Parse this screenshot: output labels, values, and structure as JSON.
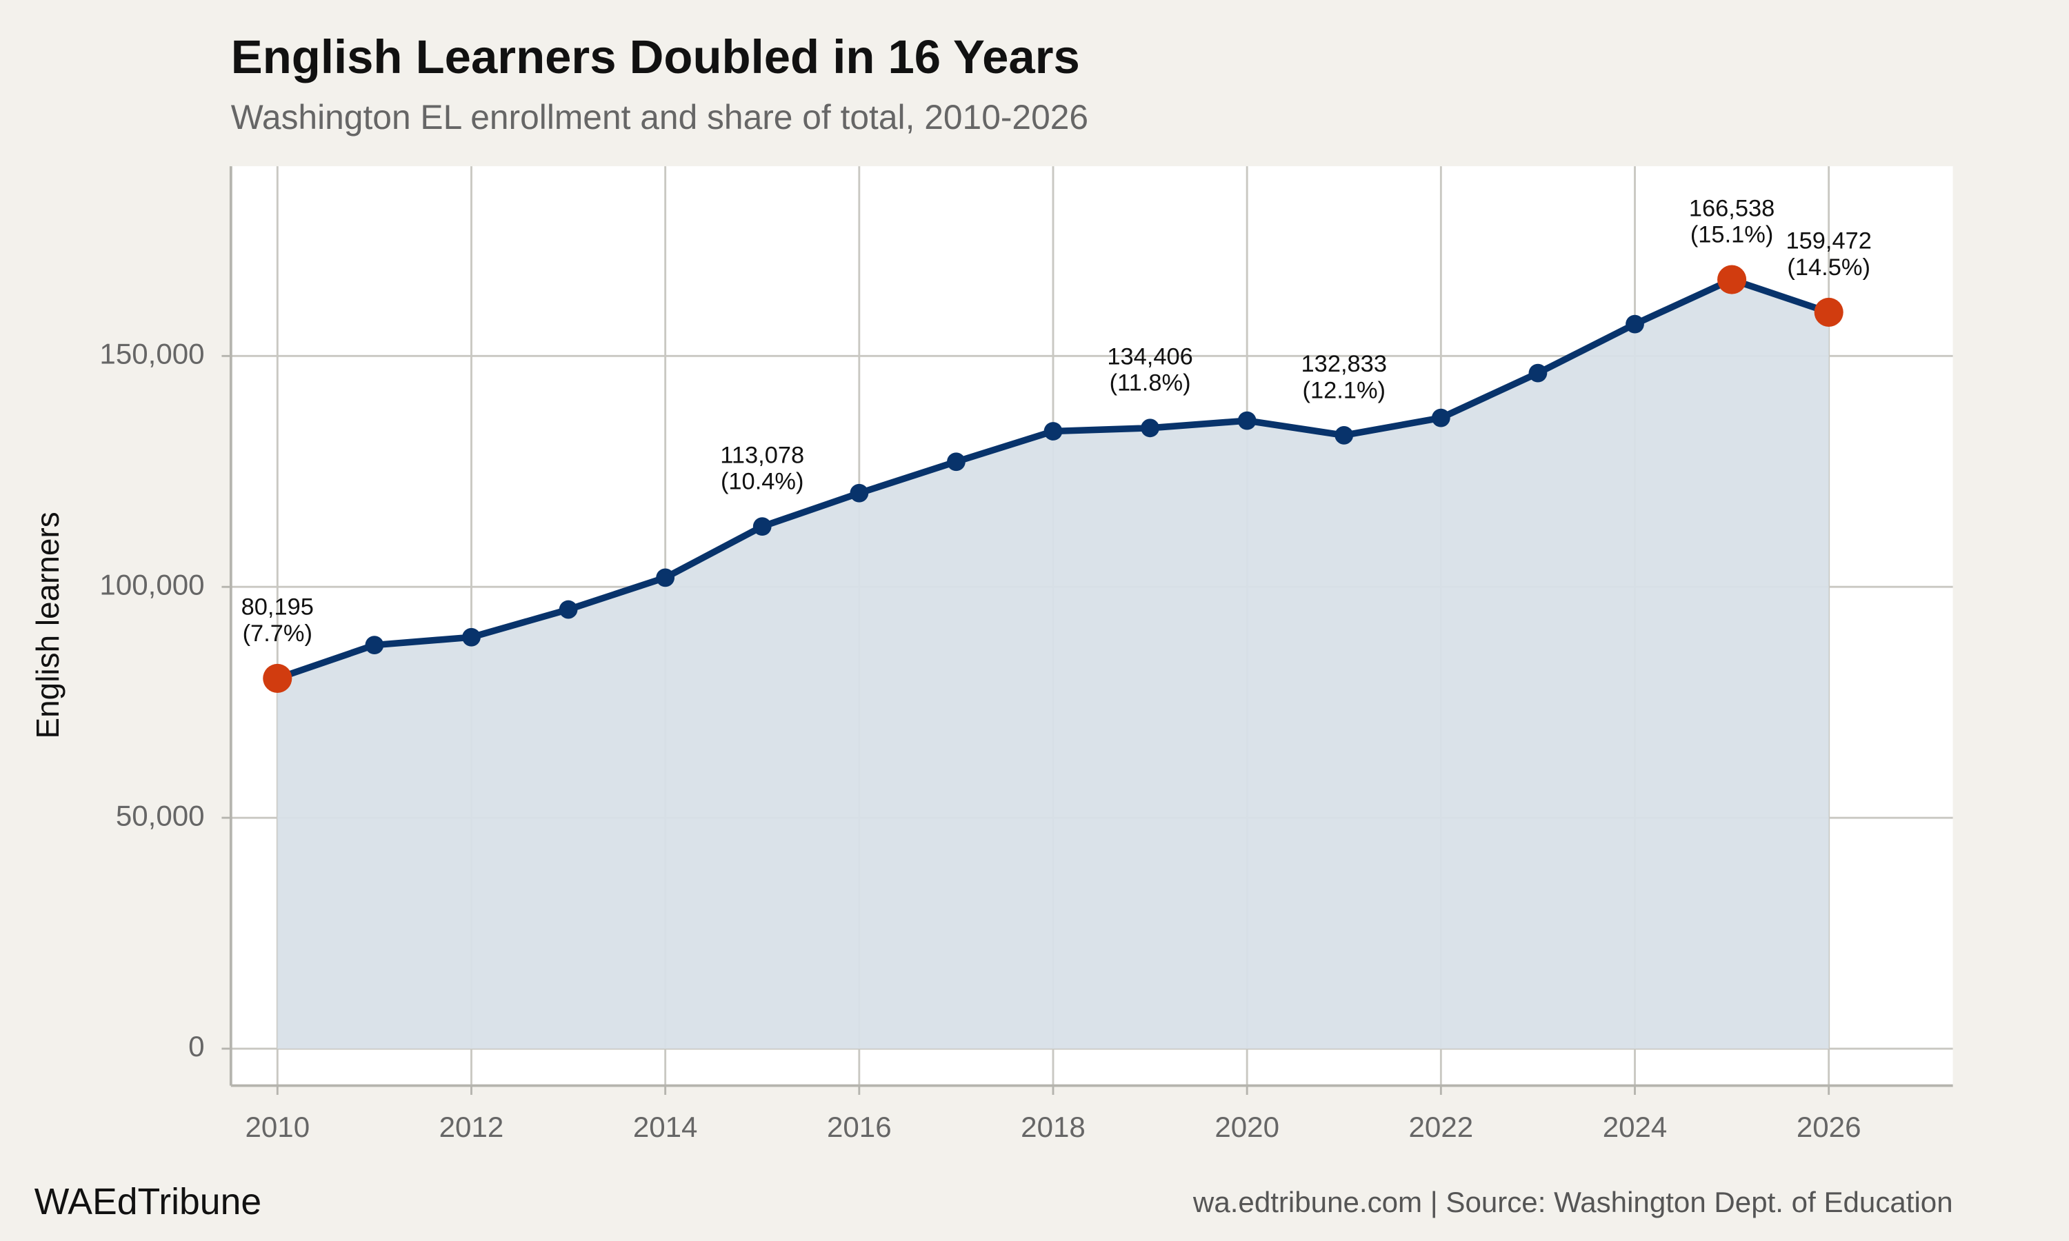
{
  "chart_data": {
    "type": "line",
    "title": "English Learners Doubled in 16 Years",
    "subtitle": "Washington EL enrollment and share of total, 2010-2026",
    "y_label": "English learners",
    "brand": "WAEdTribune",
    "source": "wa.edtribune.com | Source: Washington Dept. of Education",
    "x": [
      2010,
      2011,
      2012,
      2013,
      2014,
      2015,
      2016,
      2017,
      2018,
      2019,
      2020,
      2021,
      2022,
      2023,
      2024,
      2025,
      2026
    ],
    "series": [
      {
        "name": "English learners",
        "color": "#08336b",
        "fill": "#d8e0e8",
        "values": [
          80195,
          87400,
          89100,
          95100,
          102000,
          113078,
          120300,
          127100,
          133700,
          134406,
          136000,
          132833,
          136600,
          146300,
          156900,
          166538,
          159472
        ],
        "value_labels": [
          "80,195",
          null,
          null,
          null,
          null,
          "113,078",
          null,
          null,
          null,
          "134,406",
          null,
          "132,833",
          null,
          null,
          null,
          "166,538",
          "159,472"
        ],
        "share_labels": [
          "(7.7%)",
          null,
          null,
          null,
          null,
          "(10.4%)",
          null,
          null,
          null,
          "(11.8%)",
          null,
          "(12.1%)",
          null,
          null,
          null,
          "(15.1%)",
          "(14.5%)"
        ],
        "point_colors": [
          "#d13c0f",
          "#08336b",
          "#08336b",
          "#08336b",
          "#08336b",
          "#08336b",
          "#08336b",
          "#08336b",
          "#08336b",
          "#08336b",
          "#08336b",
          "#08336b",
          "#08336b",
          "#08336b",
          "#08336b",
          "#d13c0f",
          "#d13c0f"
        ]
      }
    ],
    "xlim": [
      2009.52,
      2027.28
    ],
    "xticks": [
      2010,
      2012,
      2014,
      2016,
      2018,
      2020,
      2022,
      2024,
      2026
    ],
    "ylim": [
      -8000,
      191100
    ],
    "yticks": [
      0,
      {
        "value": 50000,
        "label": "50,000"
      },
      {
        "value": 100000,
        "label": "100,000"
      },
      {
        "value": 150000,
        "label": "150,000"
      }
    ],
    "grid": true
  }
}
